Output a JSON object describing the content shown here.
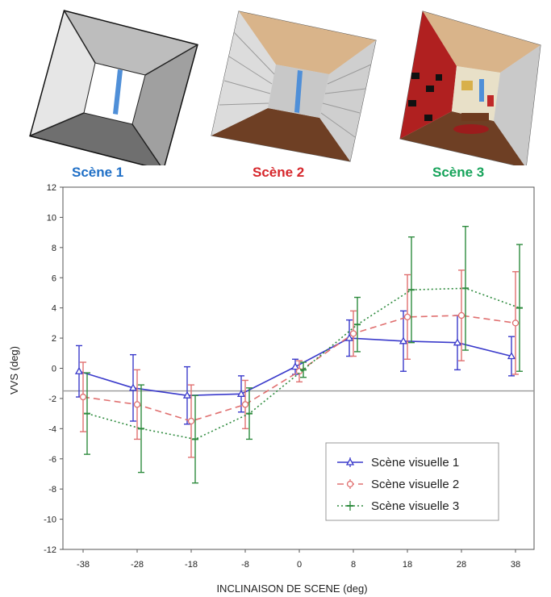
{
  "scenes": [
    {
      "label": "Scène 1",
      "color": "#1f6fc6"
    },
    {
      "label": "Scène 2",
      "color": "#d6262b"
    },
    {
      "label": "Scène 3",
      "color": "#16a35a"
    }
  ],
  "chart_data": {
    "type": "line",
    "xlabel": "INCLINAISON DE SCENE (deg)",
    "ylabel": "VVS (deg)",
    "categories": [
      -38,
      -28,
      -18,
      -8,
      0,
      8,
      18,
      28,
      38
    ],
    "ylim": [
      -12,
      12
    ],
    "yticks": [
      -12,
      -10,
      -8,
      -6,
      -4,
      -2,
      0,
      2,
      4,
      6,
      8,
      10,
      12
    ],
    "reference_line_y": -1.5,
    "grid": false,
    "legend_position": "bottom-right",
    "series": [
      {
        "name": "Scène visuelle 1",
        "color": "#3a3acb",
        "marker": "triangle",
        "dash": "",
        "values": [
          -0.2,
          -1.3,
          -1.8,
          -1.7,
          0.1,
          2.0,
          1.8,
          1.7,
          0.8
        ],
        "errors": [
          1.7,
          2.2,
          1.9,
          1.2,
          0.5,
          1.2,
          2.0,
          1.8,
          1.3
        ]
      },
      {
        "name": "Scène visuelle 2",
        "color": "#e07070",
        "marker": "circle",
        "dash": "8,5",
        "values": [
          -1.9,
          -2.4,
          -3.5,
          -2.4,
          -0.2,
          2.3,
          3.4,
          3.5,
          3.0
        ],
        "errors": [
          2.3,
          2.3,
          2.4,
          1.6,
          0.7,
          1.5,
          2.8,
          3.0,
          3.4
        ]
      },
      {
        "name": "Scène visuelle 3",
        "color": "#2e8b3e",
        "marker": "bar",
        "dash": "2,3",
        "values": [
          -3.0,
          -4.0,
          -4.7,
          -3.0,
          -0.1,
          2.9,
          5.2,
          5.3,
          4.0
        ],
        "errors": [
          2.7,
          2.9,
          2.9,
          1.7,
          0.5,
          1.8,
          3.5,
          4.1,
          4.2
        ]
      }
    ]
  }
}
